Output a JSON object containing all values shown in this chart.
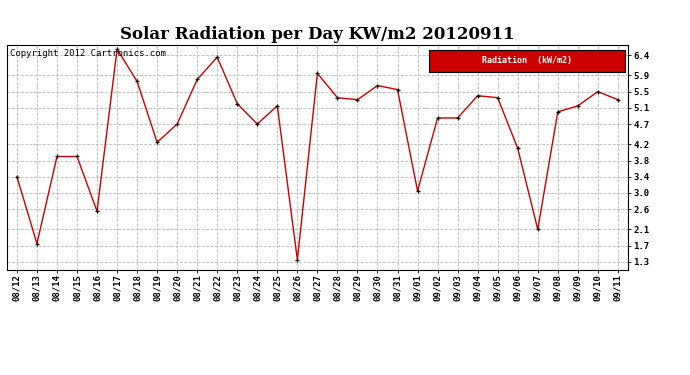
{
  "title": "Solar Radiation per Day KW/m2 20120911",
  "copyright": "Copyright 2012 Cartronics.com",
  "legend_label": "Radiation  (kW/m2)",
  "x_labels": [
    "08/12",
    "08/13",
    "08/14",
    "08/15",
    "08/16",
    "08/17",
    "08/18",
    "08/19",
    "08/20",
    "08/21",
    "08/22",
    "08/23",
    "08/24",
    "08/25",
    "08/26",
    "08/27",
    "08/28",
    "08/29",
    "08/30",
    "08/31",
    "09/01",
    "09/02",
    "09/03",
    "09/04",
    "09/05",
    "09/06",
    "09/07",
    "09/08",
    "09/09",
    "09/10",
    "09/11"
  ],
  "y_values": [
    3.4,
    1.75,
    3.9,
    3.9,
    2.55,
    6.55,
    5.75,
    4.25,
    4.7,
    5.8,
    6.35,
    5.2,
    4.7,
    5.15,
    1.35,
    5.95,
    5.35,
    5.3,
    5.65,
    5.55,
    3.05,
    4.85,
    4.85,
    5.4,
    5.35,
    4.1,
    2.1,
    5.0,
    5.15,
    5.5,
    5.3
  ],
  "line_color": "#cc0000",
  "marker_color": "#000000",
  "bg_color": "#ffffff",
  "grid_color": "#bbbbbb",
  "yticks": [
    1.3,
    1.7,
    2.1,
    2.6,
    3.0,
    3.4,
    3.8,
    4.2,
    4.7,
    5.1,
    5.5,
    5.9,
    6.4
  ],
  "ylim": [
    1.1,
    6.65
  ],
  "legend_bg": "#cc0000",
  "legend_text_color": "#ffffff",
  "title_fontsize": 12,
  "tick_fontsize": 6.5,
  "copyright_fontsize": 6.5
}
